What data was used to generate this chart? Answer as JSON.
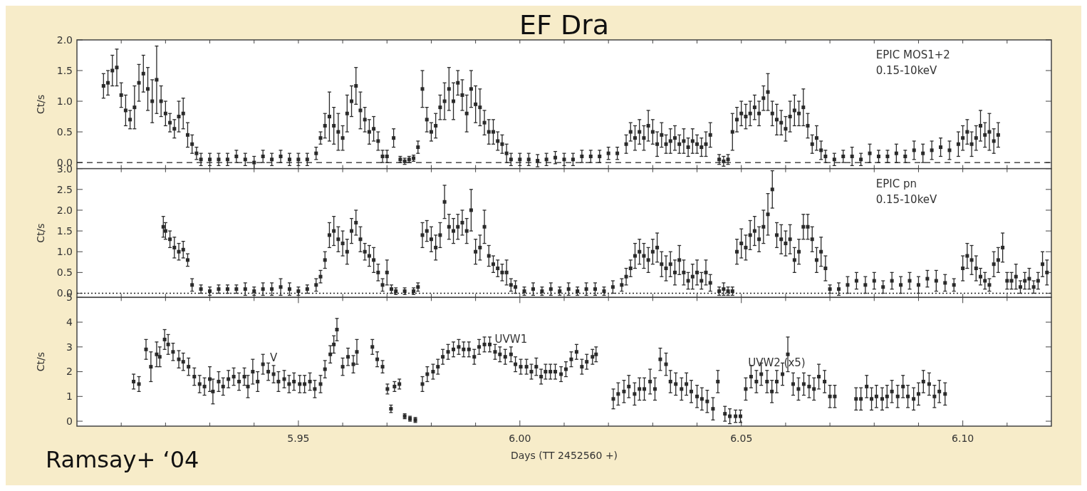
{
  "chart_data": [
    {
      "type": "scatter",
      "title": "EF Dra",
      "ylabel": "Ct/s",
      "marker": "square",
      "tick_labels": "y",
      "xlim": [
        5.9,
        6.12
      ],
      "xticks": [
        {
          "value": 5.91,
          "label": null
        },
        {
          "value": 5.92,
          "label": null
        },
        {
          "value": 5.93,
          "label": null
        },
        {
          "value": 5.94,
          "label": null
        },
        {
          "value": 5.95,
          "label": null
        },
        {
          "value": 5.96,
          "label": null
        },
        {
          "value": 5.97,
          "label": null
        },
        {
          "value": 5.98,
          "label": null
        },
        {
          "value": 5.99,
          "label": null
        },
        {
          "value": 6,
          "label": null
        },
        {
          "value": 6.01,
          "label": null
        },
        {
          "value": 6.02,
          "label": null
        },
        {
          "value": 6.03,
          "label": null
        },
        {
          "value": 6.04,
          "label": null
        },
        {
          "value": 6.05,
          "label": null
        },
        {
          "value": 6.06,
          "label": null
        },
        {
          "value": 6.07,
          "label": null
        },
        {
          "value": 6.08,
          "label": null
        },
        {
          "value": 6.09,
          "label": null
        },
        {
          "value": 6.1,
          "label": null
        },
        {
          "value": 6.11,
          "label": null
        }
      ],
      "ylim": [
        -0.1,
        2.0
      ],
      "yticks": [
        {
          "value": 0,
          "label": "0.0"
        },
        0.5,
        {
          "value": 1,
          "label": "1.0"
        },
        1.5,
        {
          "value": 2,
          "label": "2.0"
        }
      ],
      "ref_lines": [
        {
          "axis": "y",
          "value": 0,
          "line_style": "dashed"
        }
      ],
      "annotations": [
        "EPIC MOS1+2",
        "0.15-10keV"
      ],
      "series": [
        {
          "color": "#2a2a2a",
          "x": [
            5.906,
            5.907,
            5.908,
            5.909,
            5.91,
            5.911,
            5.912,
            5.913,
            5.914,
            5.915,
            5.916,
            5.917,
            5.918,
            5.919,
            5.92,
            5.921,
            5.922,
            5.923,
            5.924,
            5.925,
            5.926,
            5.927,
            5.928,
            5.93,
            5.932,
            5.934,
            5.936,
            5.938,
            5.94,
            5.942,
            5.944,
            5.946,
            5.948,
            5.95,
            5.952,
            5.954,
            5.955,
            5.956,
            5.957,
            5.958,
            5.959,
            5.96,
            5.961,
            5.962,
            5.963,
            5.964,
            5.965,
            5.966,
            5.967,
            5.968,
            5.969,
            5.97,
            5.9715,
            5.973,
            5.974,
            5.975,
            5.976,
            5.977,
            5.978,
            5.979,
            5.98,
            5.981,
            5.982,
            5.983,
            5.984,
            5.985,
            5.986,
            5.987,
            5.988,
            5.989,
            5.99,
            5.991,
            5.992,
            5.993,
            5.994,
            5.995,
            5.996,
            5.997,
            5.998,
            6.0,
            6.002,
            6.004,
            6.006,
            6.008,
            6.01,
            6.012,
            6.014,
            6.016,
            6.018,
            6.02,
            6.022,
            6.024,
            6.025,
            6.026,
            6.027,
            6.028,
            6.029,
            6.03,
            6.031,
            6.032,
            6.033,
            6.034,
            6.035,
            6.036,
            6.037,
            6.038,
            6.039,
            6.04,
            6.041,
            6.042,
            6.043,
            6.045,
            6.046,
            6.047,
            6.048,
            6.049,
            6.05,
            6.051,
            6.052,
            6.053,
            6.054,
            6.055,
            6.056,
            6.057,
            6.058,
            6.059,
            6.06,
            6.061,
            6.062,
            6.063,
            6.064,
            6.065,
            6.066,
            6.067,
            6.068,
            6.069,
            6.071,
            6.073,
            6.075,
            6.077,
            6.079,
            6.081,
            6.083,
            6.085,
            6.087,
            6.089,
            6.091,
            6.093,
            6.095,
            6.097,
            6.099,
            6.1,
            6.101,
            6.102,
            6.103,
            6.104,
            6.105,
            6.106,
            6.107,
            6.108
          ],
          "values": [
            1.25,
            1.3,
            1.5,
            1.55,
            1.1,
            0.85,
            0.7,
            0.9,
            1.3,
            1.45,
            1.2,
            1.0,
            1.35,
            1.0,
            0.8,
            0.65,
            0.55,
            0.75,
            0.8,
            0.45,
            0.3,
            0.15,
            0.05,
            0.05,
            0.05,
            0.05,
            0.1,
            0.05,
            0.0,
            0.1,
            0.05,
            0.1,
            0.05,
            0.05,
            0.05,
            0.15,
            0.4,
            0.6,
            0.75,
            0.6,
            0.5,
            0.4,
            0.8,
            1.0,
            1.25,
            0.85,
            0.7,
            0.5,
            0.55,
            0.35,
            0.1,
            0.1,
            0.4,
            0.05,
            0.02,
            0.05,
            0.07,
            0.25,
            1.2,
            0.7,
            0.5,
            0.6,
            0.9,
            1.0,
            1.2,
            1.0,
            1.3,
            1.1,
            0.8,
            1.2,
            0.95,
            0.9,
            0.65,
            0.5,
            0.5,
            0.35,
            0.3,
            0.15,
            0.05,
            0.05,
            0.05,
            0.03,
            0.05,
            0.08,
            0.05,
            0.05,
            0.1,
            0.1,
            0.1,
            0.15,
            0.15,
            0.3,
            0.5,
            0.4,
            0.5,
            0.4,
            0.6,
            0.5,
            0.3,
            0.45,
            0.3,
            0.35,
            0.4,
            0.3,
            0.35,
            0.25,
            0.35,
            0.3,
            0.25,
            0.3,
            0.45,
            0.05,
            0.02,
            0.05,
            0.5,
            0.7,
            0.8,
            0.75,
            0.8,
            0.9,
            0.8,
            1.05,
            1.15,
            0.8,
            0.7,
            0.65,
            0.55,
            0.75,
            0.85,
            0.8,
            0.9,
            0.6,
            0.3,
            0.4,
            0.2,
            0.1,
            0.05,
            0.1,
            0.1,
            0.05,
            0.15,
            0.1,
            0.1,
            0.15,
            0.1,
            0.2,
            0.15,
            0.2,
            0.25,
            0.2,
            0.3,
            0.4,
            0.5,
            0.3,
            0.4,
            0.6,
            0.45,
            0.5,
            0.35,
            0.45
          ],
          "errors": [
            0.2,
            0.2,
            0.25,
            0.3,
            0.2,
            0.25,
            0.15,
            0.35,
            0.3,
            0.3,
            0.35,
            0.35,
            0.55,
            0.25,
            0.2,
            0.15,
            0.15,
            0.25,
            0.25,
            0.2,
            0.15,
            0.1,
            0.1,
            0.1,
            0.1,
            0.1,
            0.1,
            0.1,
            0.1,
            0.1,
            0.1,
            0.1,
            0.1,
            0.1,
            0.1,
            0.1,
            0.1,
            0.2,
            0.4,
            0.3,
            0.3,
            0.2,
            0.3,
            0.25,
            0.3,
            0.3,
            0.2,
            0.2,
            0.2,
            0.15,
            0.1,
            0.1,
            0.15,
            0.05,
            0.05,
            0.05,
            0.05,
            0.1,
            0.3,
            0.2,
            0.15,
            0.2,
            0.2,
            0.3,
            0.35,
            0.3,
            0.2,
            0.25,
            0.3,
            0.3,
            0.3,
            0.3,
            0.2,
            0.2,
            0.2,
            0.15,
            0.15,
            0.15,
            0.1,
            0.1,
            0.1,
            0.1,
            0.1,
            0.1,
            0.1,
            0.1,
            0.1,
            0.1,
            0.1,
            0.1,
            0.1,
            0.15,
            0.15,
            0.2,
            0.2,
            0.2,
            0.25,
            0.2,
            0.2,
            0.2,
            0.15,
            0.2,
            0.2,
            0.15,
            0.2,
            0.15,
            0.2,
            0.15,
            0.15,
            0.2,
            0.2,
            0.08,
            0.08,
            0.08,
            0.3,
            0.2,
            0.2,
            0.2,
            0.2,
            0.2,
            0.2,
            0.2,
            0.3,
            0.2,
            0.25,
            0.2,
            0.2,
            0.25,
            0.25,
            0.2,
            0.3,
            0.2,
            0.15,
            0.2,
            0.15,
            0.1,
            0.1,
            0.1,
            0.15,
            0.1,
            0.15,
            0.1,
            0.1,
            0.15,
            0.1,
            0.15,
            0.15,
            0.15,
            0.15,
            0.15,
            0.2,
            0.2,
            0.2,
            0.2,
            0.2,
            0.25,
            0.2,
            0.3,
            0.2,
            0.2
          ]
        }
      ]
    },
    {
      "type": "scatter",
      "ylabel": "Ct/s",
      "marker": "square",
      "tick_labels": "y",
      "xlim": [
        5.9,
        6.12
      ],
      "xticks": [
        {
          "value": 5.91,
          "label": null
        },
        {
          "value": 5.92,
          "label": null
        },
        {
          "value": 5.93,
          "label": null
        },
        {
          "value": 5.94,
          "label": null
        },
        {
          "value": 5.95,
          "label": null
        },
        {
          "value": 5.96,
          "label": null
        },
        {
          "value": 5.97,
          "label": null
        },
        {
          "value": 5.98,
          "label": null
        },
        {
          "value": 5.99,
          "label": null
        },
        {
          "value": 6,
          "label": null
        },
        {
          "value": 6.01,
          "label": null
        },
        {
          "value": 6.02,
          "label": null
        },
        {
          "value": 6.03,
          "label": null
        },
        {
          "value": 6.04,
          "label": null
        },
        {
          "value": 6.05,
          "label": null
        },
        {
          "value": 6.06,
          "label": null
        },
        {
          "value": 6.07,
          "label": null
        },
        {
          "value": 6.08,
          "label": null
        },
        {
          "value": 6.09,
          "label": null
        },
        {
          "value": 6.1,
          "label": null
        },
        {
          "value": 6.11,
          "label": null
        }
      ],
      "ylim": [
        -0.1,
        3.0
      ],
      "yticks": [
        {
          "value": 0,
          "label": "0.0"
        },
        0.5,
        {
          "value": 1,
          "label": "1.0"
        },
        1.5,
        {
          "value": 2,
          "label": "2.0"
        },
        2.5,
        {
          "value": 3,
          "label": "3.0"
        }
      ],
      "ref_lines": [
        {
          "axis": "y",
          "value": 0,
          "line_style": "dotted"
        }
      ],
      "annotations": [
        "EPIC pn",
        "0.15-10keV"
      ],
      "series": [
        {
          "color": "#2a2a2a",
          "x": [
            5.9195,
            5.92,
            5.921,
            5.922,
            5.923,
            5.924,
            5.925,
            5.926,
            5.928,
            5.93,
            5.932,
            5.934,
            5.936,
            5.938,
            5.94,
            5.942,
            5.944,
            5.946,
            5.948,
            5.95,
            5.952,
            5.954,
            5.955,
            5.956,
            5.957,
            5.958,
            5.959,
            5.96,
            5.961,
            5.962,
            5.963,
            5.964,
            5.965,
            5.966,
            5.967,
            5.968,
            5.969,
            5.97,
            5.971,
            5.972,
            5.974,
            5.976,
            5.977,
            5.978,
            5.979,
            5.98,
            5.981,
            5.982,
            5.983,
            5.984,
            5.985,
            5.986,
            5.987,
            5.988,
            5.989,
            5.99,
            5.991,
            5.992,
            5.993,
            5.994,
            5.995,
            5.996,
            5.997,
            5.998,
            5.999,
            6.001,
            6.003,
            6.005,
            6.007,
            6.009,
            6.011,
            6.013,
            6.015,
            6.017,
            6.019,
            6.021,
            6.023,
            6.024,
            6.025,
            6.026,
            6.027,
            6.028,
            6.029,
            6.03,
            6.031,
            6.032,
            6.033,
            6.034,
            6.035,
            6.036,
            6.037,
            6.038,
            6.039,
            6.04,
            6.041,
            6.042,
            6.043,
            6.045,
            6.046,
            6.047,
            6.048,
            6.049,
            6.05,
            6.051,
            6.052,
            6.053,
            6.054,
            6.055,
            6.056,
            6.057,
            6.058,
            6.059,
            6.06,
            6.061,
            6.062,
            6.063,
            6.064,
            6.065,
            6.066,
            6.067,
            6.068,
            6.069,
            6.07,
            6.072,
            6.074,
            6.076,
            6.078,
            6.08,
            6.082,
            6.084,
            6.086,
            6.088,
            6.09,
            6.092,
            6.094,
            6.096,
            6.098,
            6.1,
            6.101,
            6.102,
            6.103,
            6.104,
            6.105,
            6.106,
            6.107,
            6.108,
            6.109,
            6.11,
            6.111,
            6.112,
            6.113,
            6.114,
            6.115,
            6.116,
            6.117,
            6.118,
            6.119
          ],
          "values": [
            1.6,
            1.5,
            1.3,
            1.1,
            1.0,
            1.05,
            0.8,
            0.2,
            0.1,
            0.05,
            0.1,
            0.1,
            0.1,
            0.1,
            0.05,
            0.1,
            0.1,
            0.15,
            0.1,
            0.05,
            0.1,
            0.2,
            0.4,
            0.8,
            1.4,
            1.5,
            1.3,
            1.2,
            1.0,
            1.5,
            1.7,
            1.3,
            1.0,
            0.9,
            0.8,
            0.5,
            0.2,
            0.5,
            0.1,
            0.05,
            0.05,
            0.05,
            0.15,
            1.4,
            1.5,
            1.3,
            1.1,
            1.4,
            2.2,
            1.6,
            1.5,
            1.6,
            1.7,
            1.5,
            2.0,
            1.0,
            1.1,
            1.6,
            0.9,
            0.7,
            0.6,
            0.5,
            0.5,
            0.2,
            0.15,
            0.05,
            0.1,
            0.05,
            0.1,
            0.05,
            0.1,
            0.05,
            0.1,
            0.1,
            0.05,
            0.15,
            0.2,
            0.4,
            0.6,
            0.9,
            1.0,
            0.9,
            0.8,
            1.0,
            1.1,
            0.7,
            0.6,
            0.7,
            0.5,
            0.8,
            0.5,
            0.3,
            0.4,
            0.5,
            0.3,
            0.5,
            0.25,
            0.05,
            0.1,
            0.05,
            0.05,
            1.0,
            1.2,
            1.1,
            1.4,
            1.5,
            1.3,
            1.6,
            1.9,
            2.5,
            1.4,
            1.3,
            1.2,
            1.3,
            0.8,
            1.0,
            1.6,
            1.6,
            1.3,
            0.8,
            1.0,
            0.6,
            0.1,
            0.1,
            0.2,
            0.3,
            0.2,
            0.3,
            0.15,
            0.3,
            0.2,
            0.3,
            0.2,
            0.35,
            0.3,
            0.25,
            0.2,
            0.6,
            0.9,
            0.8,
            0.6,
            0.4,
            0.3,
            0.2,
            0.7,
            0.8,
            1.1,
            0.3,
            0.3,
            0.4,
            0.15,
            0.3,
            0.35,
            0.15,
            0.3,
            0.7,
            0.5
          ],
          "errors": [
            0.25,
            0.2,
            0.2,
            0.25,
            0.2,
            0.2,
            0.15,
            0.15,
            0.1,
            0.1,
            0.1,
            0.1,
            0.1,
            0.15,
            0.1,
            0.15,
            0.15,
            0.2,
            0.15,
            0.1,
            0.1,
            0.15,
            0.15,
            0.2,
            0.3,
            0.35,
            0.3,
            0.3,
            0.3,
            0.3,
            0.3,
            0.3,
            0.2,
            0.25,
            0.3,
            0.2,
            0.15,
            0.3,
            0.1,
            0.08,
            0.08,
            0.08,
            0.1,
            0.3,
            0.25,
            0.3,
            0.3,
            0.3,
            0.4,
            0.3,
            0.3,
            0.3,
            0.3,
            0.3,
            0.5,
            0.3,
            0.3,
            0.4,
            0.25,
            0.2,
            0.2,
            0.2,
            0.3,
            0.15,
            0.15,
            0.1,
            0.15,
            0.1,
            0.15,
            0.1,
            0.15,
            0.1,
            0.15,
            0.15,
            0.1,
            0.15,
            0.15,
            0.2,
            0.2,
            0.3,
            0.3,
            0.3,
            0.3,
            0.3,
            0.35,
            0.3,
            0.3,
            0.3,
            0.3,
            0.35,
            0.3,
            0.2,
            0.3,
            0.3,
            0.2,
            0.3,
            0.2,
            0.1,
            0.15,
            0.1,
            0.1,
            0.3,
            0.35,
            0.3,
            0.35,
            0.35,
            0.3,
            0.4,
            0.5,
            0.45,
            0.3,
            0.35,
            0.3,
            0.35,
            0.3,
            0.3,
            0.3,
            0.3,
            0.3,
            0.3,
            0.35,
            0.3,
            0.1,
            0.15,
            0.2,
            0.2,
            0.2,
            0.2,
            0.15,
            0.2,
            0.2,
            0.2,
            0.2,
            0.2,
            0.25,
            0.2,
            0.15,
            0.3,
            0.3,
            0.35,
            0.3,
            0.2,
            0.2,
            0.15,
            0.3,
            0.3,
            0.35,
            0.2,
            0.2,
            0.3,
            0.15,
            0.2,
            0.25,
            0.15,
            0.2,
            0.3,
            0.3
          ]
        }
      ]
    },
    {
      "type": "scatter",
      "ylabel": "Ct/s",
      "xlabel": "Days (TT 2452560 +)",
      "marker": "square",
      "xlim": [
        5.9,
        6.12
      ],
      "xticks": [
        {
          "value": 5.91,
          "label": null
        },
        {
          "value": 5.92,
          "label": null
        },
        {
          "value": 5.93,
          "label": null
        },
        {
          "value": 5.94,
          "label": null
        },
        5.95,
        {
          "value": 5.96,
          "label": null
        },
        {
          "value": 5.97,
          "label": null
        },
        {
          "value": 5.98,
          "label": null
        },
        {
          "value": 5.99,
          "label": null
        },
        {
          "value": 6,
          "label": "6.00"
        },
        {
          "value": 6.01,
          "label": null
        },
        {
          "value": 6.02,
          "label": null
        },
        {
          "value": 6.03,
          "label": null
        },
        {
          "value": 6.04,
          "label": null
        },
        6.05,
        {
          "value": 6.06,
          "label": null
        },
        {
          "value": 6.07,
          "label": null
        },
        {
          "value": 6.08,
          "label": null
        },
        {
          "value": 6.09,
          "label": null
        },
        {
          "value": 6.1,
          "label": "6.10"
        },
        {
          "value": 6.11,
          "label": null
        }
      ],
      "ylim": [
        -0.2,
        5
      ],
      "yticks": [
        0,
        1,
        2,
        3,
        4,
        5
      ],
      "annotations": [
        "Ramsay+ ‘04"
      ],
      "series": [
        {
          "name": "V",
          "color": "#2a2a2a",
          "x": [
            5.9128,
            5.914,
            5.9156,
            5.9167,
            5.918,
            5.9187,
            5.9198,
            5.9206,
            5.9217,
            5.923,
            5.924,
            5.9252,
            5.9265,
            5.9277,
            5.9288,
            5.93,
            5.9307,
            5.932,
            5.933,
            5.9342,
            5.9354,
            5.9366,
            5.9378,
            5.9386,
            5.9397,
            5.9408,
            5.942,
            5.9432,
            5.9444,
            5.9455,
            5.9468,
            5.9479,
            5.949,
            5.9503,
            5.9514,
            5.9526,
            5.9537,
            5.955,
            5.956,
            5.9572,
            5.958,
            5.9587,
            5.96,
            5.9612,
            5.9624,
            5.9632,
            5.9667,
            5.9678,
            5.969,
            5.9701,
            5.9709,
            5.9717,
            5.9728,
            5.974,
            5.9752,
            5.9764
          ],
          "values": [
            1.6,
            1.5,
            2.9,
            2.2,
            2.7,
            2.6,
            3.3,
            3.1,
            2.8,
            2.5,
            2.4,
            2.2,
            1.8,
            1.5,
            1.4,
            1.7,
            1.2,
            1.6,
            1.4,
            1.7,
            1.8,
            1.6,
            1.8,
            1.4,
            2.0,
            1.6,
            2.3,
            2.0,
            1.9,
            1.6,
            1.7,
            1.5,
            1.6,
            1.5,
            1.5,
            1.6,
            1.3,
            1.5,
            2.1,
            2.7,
            3.1,
            3.7,
            2.2,
            2.6,
            2.3,
            2.8,
            3.0,
            2.5,
            2.2,
            1.3,
            0.5,
            1.4,
            1.5,
            0.2,
            0.1,
            0.05
          ],
          "errors": [
            0.3,
            0.3,
            0.4,
            0.6,
            0.5,
            0.4,
            0.4,
            0.4,
            0.35,
            0.35,
            0.35,
            0.35,
            0.35,
            0.35,
            0.35,
            0.5,
            0.5,
            0.4,
            0.35,
            0.35,
            0.35,
            0.35,
            0.35,
            0.45,
            0.5,
            0.4,
            0.4,
            0.35,
            0.35,
            0.4,
            0.35,
            0.35,
            0.35,
            0.35,
            0.35,
            0.35,
            0.35,
            0.35,
            0.35,
            0.35,
            0.35,
            0.45,
            0.35,
            0.35,
            0.35,
            0.5,
            0.3,
            0.3,
            0.25,
            0.2,
            0.15,
            0.2,
            0.2,
            0.1,
            0.1,
            0.1
          ]
        },
        {
          "name": "UVW1",
          "color": "#2a2a2a",
          "x": [
            5.978,
            5.9791,
            5.9804,
            5.9815,
            5.9826,
            5.9838,
            5.985,
            5.9862,
            5.9873,
            5.9885,
            5.9897,
            5.9908,
            5.992,
            5.9932,
            5.9944,
            5.9955,
            5.9967,
            5.998,
            5.999,
            6.0002,
            6.0015,
            6.0026,
            6.0037,
            6.0048,
            6.0058,
            6.0069,
            6.008,
            6.0093,
            6.0104,
            6.0116,
            6.0128,
            6.014,
            6.0151,
            6.0164,
            6.0172
          ],
          "values": [
            1.5,
            1.9,
            2.0,
            2.2,
            2.6,
            2.8,
            2.9,
            3.0,
            2.9,
            2.9,
            2.6,
            3.0,
            3.1,
            3.1,
            2.8,
            2.7,
            2.6,
            2.7,
            2.3,
            2.2,
            2.2,
            2.0,
            2.2,
            1.8,
            2.0,
            2.0,
            2.0,
            1.9,
            2.1,
            2.5,
            2.8,
            2.2,
            2.4,
            2.6,
            2.7
          ],
          "errors": [
            0.3,
            0.3,
            0.3,
            0.3,
            0.3,
            0.3,
            0.3,
            0.3,
            0.3,
            0.3,
            0.3,
            0.3,
            0.3,
            0.3,
            0.3,
            0.3,
            0.3,
            0.3,
            0.3,
            0.3,
            0.3,
            0.3,
            0.35,
            0.3,
            0.3,
            0.3,
            0.3,
            0.3,
            0.3,
            0.3,
            0.3,
            0.3,
            0.3,
            0.3,
            0.3
          ]
        },
        {
          "name": "UVW2 (x5)",
          "color": "#2a2a2a",
          "x": [
            6.0211,
            6.0222,
            6.0235,
            6.0246,
            6.0259,
            6.027,
            6.0281,
            6.0294,
            6.0305,
            6.0317,
            6.033,
            6.034,
            6.0352,
            6.0365,
            6.0376,
            6.0387,
            6.04,
            6.0411,
            6.0423,
            6.0436,
            6.0447,
            6.0463,
            6.0474,
            6.0487,
            6.0498,
            6.051,
            6.0522,
            6.0534,
            6.0545,
            6.0558,
            6.0569,
            6.058,
            6.0593,
            6.0605,
            6.0617,
            6.0629,
            6.0641,
            6.0653,
            6.0664,
            6.0675,
            6.0688,
            6.07,
            6.0711,
            6.0759,
            6.077,
            6.0783,
            6.0794,
            6.0805,
            6.0818,
            6.0829,
            6.084,
            6.0853,
            6.0865,
            6.0876,
            6.0889,
            6.09,
            6.0911,
            6.0924,
            6.0936,
            6.0947,
            6.096
          ],
          "values": [
            0.9,
            1.1,
            1.2,
            1.4,
            1.1,
            1.3,
            1.3,
            1.6,
            1.3,
            2.5,
            2.3,
            1.6,
            1.5,
            1.3,
            1.5,
            1.2,
            1.0,
            0.9,
            0.8,
            0.5,
            1.6,
            0.3,
            0.2,
            0.2,
            0.2,
            1.3,
            1.8,
            1.6,
            1.9,
            1.6,
            1.2,
            1.6,
            1.9,
            2.7,
            1.5,
            1.3,
            1.5,
            1.4,
            1.3,
            1.8,
            1.6,
            1.0,
            1.0,
            0.9,
            0.9,
            1.4,
            0.9,
            1.0,
            0.9,
            1.0,
            1.2,
            1.0,
            1.4,
            1.0,
            0.9,
            1.1,
            1.6,
            1.5,
            1.0,
            1.2,
            1.1
          ],
          "errors": [
            0.4,
            0.45,
            0.45,
            0.45,
            0.45,
            0.45,
            0.45,
            0.5,
            0.45,
            0.45,
            0.45,
            0.45,
            0.45,
            0.45,
            0.45,
            0.45,
            0.45,
            0.45,
            0.45,
            0.45,
            0.45,
            0.3,
            0.3,
            0.25,
            0.25,
            0.45,
            0.45,
            0.45,
            0.45,
            0.45,
            0.45,
            0.45,
            0.45,
            0.7,
            0.45,
            0.45,
            0.45,
            0.45,
            0.45,
            0.5,
            0.45,
            0.45,
            0.45,
            0.45,
            0.45,
            0.45,
            0.45,
            0.45,
            0.45,
            0.45,
            0.45,
            0.45,
            0.45,
            0.45,
            0.45,
            0.45,
            0.45,
            0.45,
            0.45,
            0.45,
            0.45
          ]
        }
      ]
    }
  ]
}
